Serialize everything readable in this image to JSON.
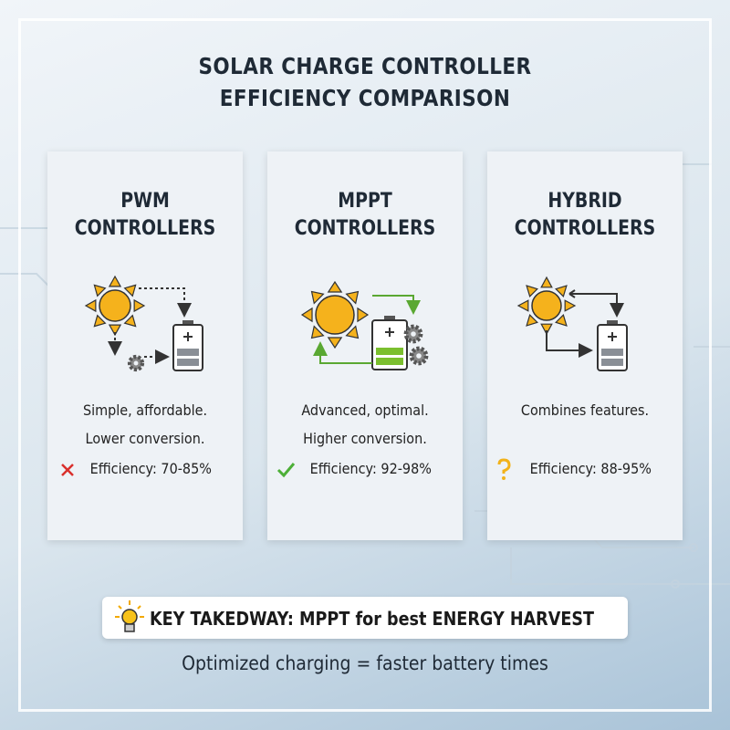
{
  "title_lines": [
    "SOLAR CHARGE CONTROLLER",
    "EFFICIENCY COMPARISON"
  ],
  "cards": [
    {
      "heading": [
        "PWM",
        "CONTROLLERS"
      ],
      "description": [
        "Simple, affordable.",
        "Lower conversion."
      ],
      "efficiency": "Efficiency: 70-85%"
    },
    {
      "heading": [
        "MPPT",
        "CONTROLLERS"
      ],
      "description": [
        "Advanced, optimal.",
        "Higher conversion."
      ],
      "efficiency": "Efficiency: 92-98%"
    },
    {
      "heading": [
        "HYBRID",
        "CONTROLLERS"
      ],
      "description": [
        "Combines features."
      ],
      "efficiency": "Efficiency: 88-95%"
    }
  ],
  "takeaway": "KEY TAKEDWAY: MPPT for best ENERGY HARVEST",
  "footer": "Optimized charging = faster battery times"
}
